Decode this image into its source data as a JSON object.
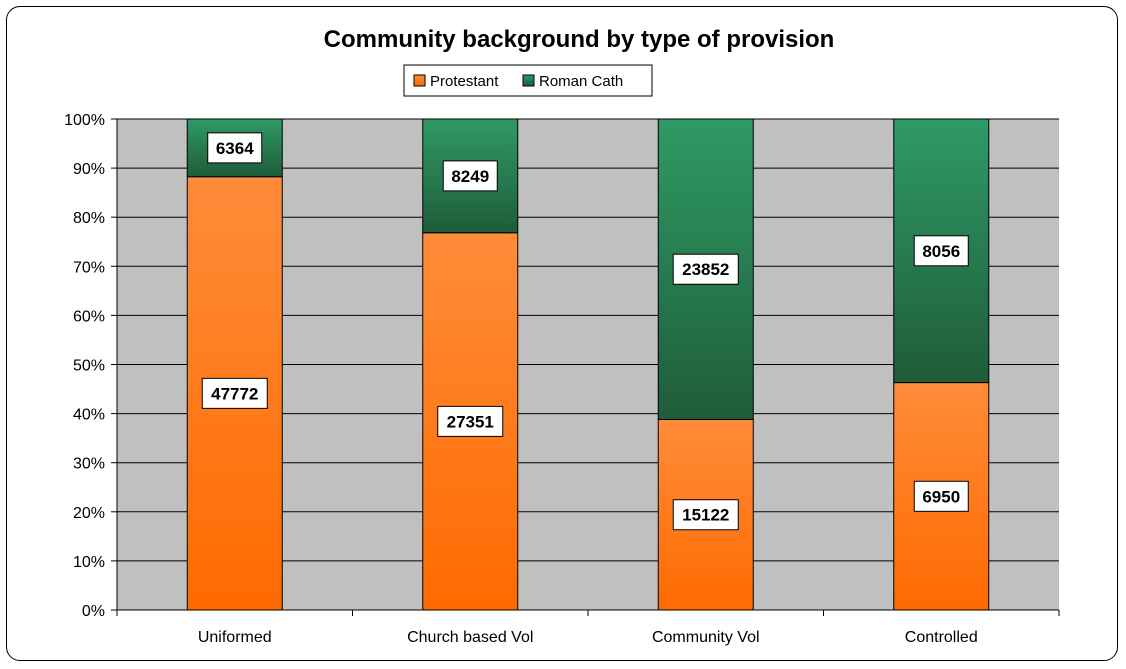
{
  "chart_data": {
    "type": "bar",
    "stacked": "percent",
    "title": "Community background by type of provision",
    "categories": [
      "Uniformed",
      "Church based Vol",
      "Community Vol",
      "Controlled"
    ],
    "series": [
      {
        "name": "Protestant",
        "values": [
          47772,
          27351,
          15122,
          6950
        ],
        "color_top": "#ff8c3a",
        "color_bottom": "#ff6a00"
      },
      {
        "name": "Roman Cath",
        "values": [
          6364,
          8249,
          23852,
          8056
        ],
        "color_top": "#2f9a65",
        "color_bottom": "#1f5c3a"
      }
    ],
    "y_ticks": [
      "0%",
      "10%",
      "20%",
      "30%",
      "40%",
      "50%",
      "60%",
      "70%",
      "80%",
      "90%",
      "100%"
    ],
    "ylim": [
      0,
      100
    ],
    "xlabel": "",
    "ylabel": "",
    "grid": true,
    "legend_position": "top-center",
    "plot_background": "#c0c0c0"
  }
}
